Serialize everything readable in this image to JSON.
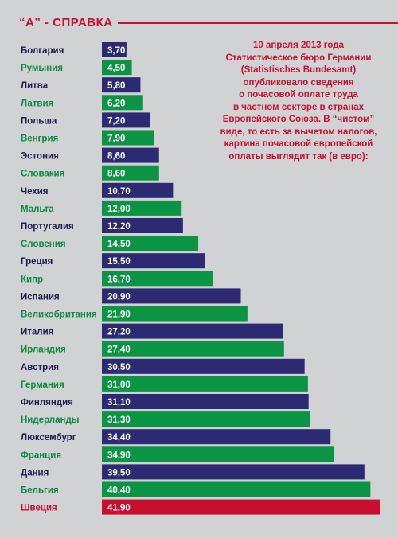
{
  "header": {
    "title": "“А” - СПРАВКА"
  },
  "intro_text": "10 апреля 2013 года\nСтатистическое бюро Германии\n(Statistisches Bundesamt)\nопубликовало сведения\nо почасовой оплате труда\nв частном секторе в странах\nЕвропейского Союза. В “чистом”\nвиде, то есть за вычетом налогов,\nкартина почасовой европейской\nоплаты выглядит так (в евро):",
  "colors": {
    "navy": "#2b2a73",
    "green": "#0b9444",
    "red": "#c8102e",
    "background": "#d1d2d4",
    "navy_label": "#1c1c4f",
    "green_label": "#0b8a40"
  },
  "chart_data": {
    "type": "bar",
    "orientation": "horizontal",
    "categories": [
      "Болгария",
      "Румыния",
      "Литва",
      "Латвия",
      "Польша",
      "Венгрия",
      "Эстония",
      "Словакия",
      "Чехия",
      "Мальта",
      "Португалия",
      "Словения",
      "Греция",
      "Кипр",
      "Испания",
      "Великобритания",
      "Италия",
      "Ирландия",
      "Австрия",
      "Германия",
      "Финляндия",
      "Нидерланды",
      "Люксембург",
      "Франция",
      "Дания",
      "Бельгия",
      "Швеция"
    ],
    "values": [
      3.7,
      4.5,
      5.8,
      6.2,
      7.2,
      7.9,
      8.6,
      8.6,
      10.7,
      12.0,
      12.2,
      14.5,
      15.5,
      16.7,
      20.9,
      21.9,
      27.2,
      27.4,
      30.5,
      31.0,
      31.1,
      31.3,
      34.4,
      34.9,
      39.5,
      40.4,
      41.9
    ],
    "value_labels": [
      "3,70",
      "4,50",
      "5,80",
      "6,20",
      "7,20",
      "7,90",
      "8,60",
      "8,60",
      "10,70",
      "12,00",
      "12,20",
      "14,50",
      "15,50",
      "16,70",
      "20,90",
      "21,90",
      "27,20",
      "27,40",
      "30,50",
      "31,00",
      "31,10",
      "31,30",
      "34,40",
      "34,90",
      "39,50",
      "40,40",
      "41,90"
    ],
    "bar_colors": [
      "navy",
      "green",
      "navy",
      "green",
      "navy",
      "green",
      "navy",
      "green",
      "navy",
      "green",
      "navy",
      "green",
      "navy",
      "green",
      "navy",
      "green",
      "navy",
      "green",
      "navy",
      "green",
      "navy",
      "green",
      "navy",
      "green",
      "navy",
      "green",
      "red"
    ],
    "unit": "евро",
    "grid": false,
    "legend": false
  }
}
